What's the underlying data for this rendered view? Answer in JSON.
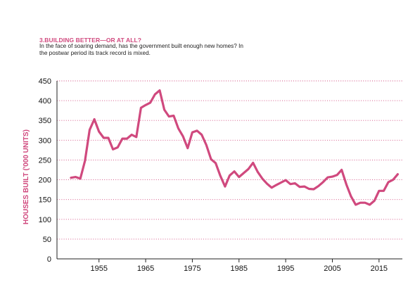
{
  "header": {
    "title": "3.BUILDING BETTER—OR AT ALL?",
    "subtitle": "In the face of soaring demand, has the government built enough new homes? In the postwar period its track record is mixed."
  },
  "colors": {
    "accent": "#d0497e",
    "line": "#d0497e",
    "grid": "#d0497e",
    "axis": "#222222",
    "text": "#111111"
  },
  "chart_data": {
    "type": "line",
    "ylabel": "HOUSES BUILT ('000 UNITS)",
    "ylim": [
      0,
      450
    ],
    "yticks": [
      0,
      50,
      100,
      150,
      200,
      250,
      300,
      350,
      400,
      450
    ],
    "xlim": [
      1946,
      2020
    ],
    "xticks": [
      1955,
      1965,
      1975,
      1985,
      1995,
      2005,
      2015
    ],
    "grid": "horizontal dotted",
    "series": [
      {
        "x": [
          1949,
          1950,
          1951,
          1952,
          1953,
          1954,
          1955,
          1956,
          1957,
          1958,
          1959,
          1960,
          1961,
          1962,
          1963,
          1964,
          1965,
          1966,
          1967,
          1968,
          1969,
          1970,
          1971,
          1972,
          1973,
          1974,
          1975,
          1976,
          1977,
          1978,
          1979,
          1980,
          1981,
          1982,
          1983,
          1984,
          1985,
          1986,
          1987,
          1988,
          1989,
          1990,
          1991,
          1992,
          1993,
          1994,
          1995,
          1996,
          1997,
          1998,
          1999,
          2000,
          2001,
          2002,
          2003,
          2004,
          2005,
          2006,
          2007,
          2008,
          2009,
          2010,
          2011,
          2012,
          2013,
          2014,
          2015,
          2016,
          2017,
          2018,
          2019
        ],
        "y": [
          205,
          207,
          203,
          248,
          326,
          353,
          322,
          306,
          306,
          277,
          282,
          304,
          304,
          314,
          308,
          382,
          389,
          395,
          416,
          426,
          377,
          360,
          362,
          330,
          310,
          280,
          320,
          324,
          314,
          288,
          252,
          242,
          210,
          183,
          211,
          221,
          207,
          217,
          227,
          243,
          220,
          203,
          190,
          180,
          187,
          193,
          199,
          189,
          191,
          182,
          183,
          177,
          176,
          184,
          194,
          206,
          208,
          212,
          225,
          188,
          158,
          137,
          142,
          142,
          137,
          147,
          172,
          172,
          194,
          200,
          214
        ]
      }
    ]
  }
}
